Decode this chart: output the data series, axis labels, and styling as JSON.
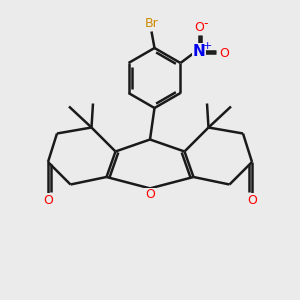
{
  "bg_color": "#ebebeb",
  "bond_color": "#1a1a1a",
  "o_color": "#ff0000",
  "n_color": "#0000ee",
  "br_color": "#cc8800",
  "bond_width": 1.8,
  "fig_width": 3.0,
  "fig_height": 3.0,
  "xlim": [
    0,
    10
  ],
  "ylim": [
    0,
    10
  ]
}
